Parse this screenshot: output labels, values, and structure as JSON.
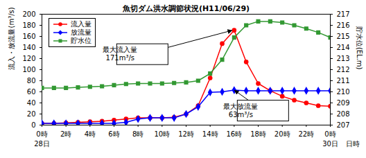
{
  "chart_data": {
    "type": "line",
    "title": "魚切ダム洪水調節状況(H11/06/29)",
    "x_label": "日時",
    "y_label": "流入・放流量(m³/s)",
    "y2_label": "貯水位(EL.m)",
    "x": [
      0,
      1,
      2,
      3,
      4,
      5,
      6,
      7,
      8,
      9,
      10,
      11,
      12,
      13,
      14,
      15,
      16,
      17,
      18,
      19,
      20,
      21,
      22,
      23,
      24
    ],
    "xlim": [
      0,
      24
    ],
    "xticks": [
      {
        "value": 0,
        "label": "0時"
      },
      {
        "value": 2,
        "label": "2時"
      },
      {
        "value": 4,
        "label": "4時"
      },
      {
        "value": 6,
        "label": "6時"
      },
      {
        "value": 8,
        "label": "8時"
      },
      {
        "value": 10,
        "label": "10時"
      },
      {
        "value": 12,
        "label": "12時"
      },
      {
        "value": 14,
        "label": "14時"
      },
      {
        "value": 16,
        "label": "16時"
      },
      {
        "value": 18,
        "label": "18時"
      },
      {
        "value": 20,
        "label": "20時"
      },
      {
        "value": 22,
        "label": "22時"
      },
      {
        "value": 24,
        "label": "0時"
      }
    ],
    "day_labels": [
      {
        "x": 0,
        "label": "28日"
      },
      {
        "x": 24,
        "label": "30日"
      }
    ],
    "ylim": [
      0,
      200
    ],
    "yticks": [
      0,
      20,
      40,
      60,
      80,
      100,
      120,
      140,
      160,
      180,
      200
    ],
    "y2lim": [
      207,
      217
    ],
    "y2ticks": [
      207,
      208,
      209,
      210,
      211,
      212,
      213,
      214,
      215,
      216,
      217
    ],
    "grid": false,
    "legend": "top-left",
    "series": [
      {
        "name": "流入量",
        "color": "#ff0000",
        "marker": "circle",
        "values": [
          3,
          3,
          4,
          5,
          6,
          7,
          9,
          11,
          13,
          13,
          13,
          14,
          20,
          35,
          85,
          147,
          171,
          114,
          75,
          62,
          52,
          45,
          40,
          35,
          34
        ]
      },
      {
        "name": "放流量",
        "color": "#0000ff",
        "marker": "diamond",
        "values": [
          3,
          3,
          3,
          3,
          3,
          3,
          3,
          5,
          11,
          13,
          13,
          13,
          20,
          33,
          59,
          60,
          63,
          62,
          62,
          62,
          62,
          62,
          62,
          62,
          62
        ]
      },
      {
        "name": "貯水位",
        "color": "#339933",
        "marker": "square",
        "axis": "y2",
        "values": [
          210.35,
          210.35,
          210.35,
          210.4,
          210.45,
          210.5,
          210.6,
          210.7,
          210.75,
          210.75,
          210.75,
          210.8,
          210.85,
          211.0,
          211.65,
          212.9,
          214.9,
          216.0,
          216.35,
          216.35,
          216.25,
          216.0,
          215.7,
          215.35,
          214.9
        ]
      }
    ],
    "annotations": [
      {
        "text": [
          "最大流入量",
          "171m³/s"
        ],
        "x": 16,
        "y": 171
      },
      {
        "text": [
          "最大放流量",
          "63m³/s"
        ],
        "x": 16,
        "y": 63
      }
    ]
  }
}
